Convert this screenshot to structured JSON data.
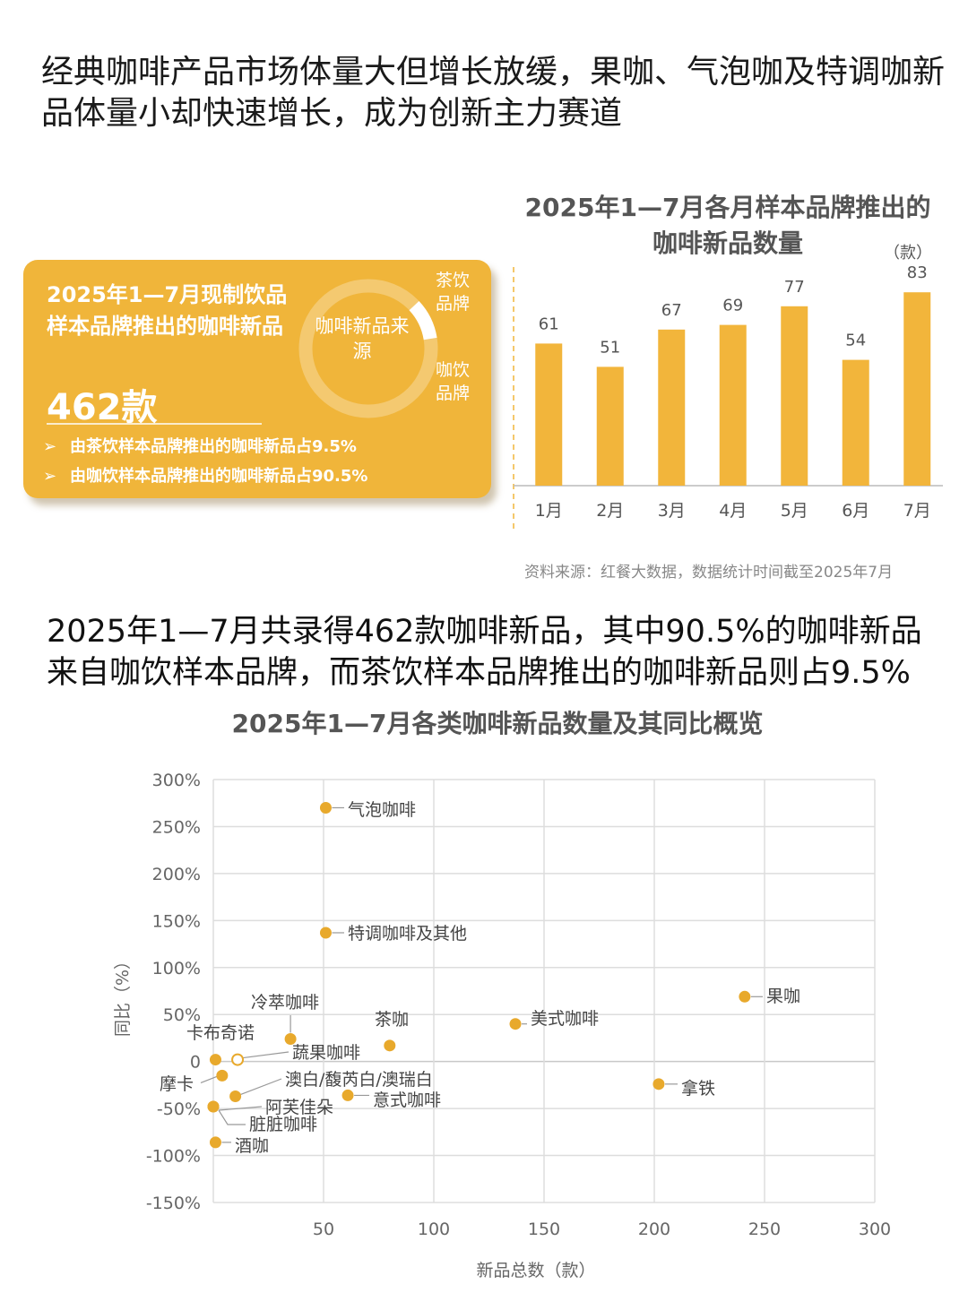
{
  "headline": "经典咖啡产品市场体量大但增长放缓，果咖、气泡咖及特调咖新品体量小却快速增长，成为创新主力赛道",
  "summary_card": {
    "title": "2025年1—7月现制饮品样本品牌推出的咖啡新品",
    "total": "462款",
    "donut_center": "咖啡新品来源",
    "tea_label": "茶饮品牌",
    "coffee_label": "咖饮品牌",
    "bullet_1": "由茶饮样本品牌推出的咖啡新品占9.5%",
    "bullet_2": "由咖饮样本品牌推出的咖啡新品占90.5%",
    "arrow": "➢",
    "share_tea_pct": 9.5,
    "share_coffee_pct": 90.5
  },
  "bar_chart_header": {
    "title": "2025年1—7月各月样本品牌推出的咖啡新品数量",
    "unit": "（款）"
  },
  "source": "资料来源：红餐大数据，数据统计时间截至2025年7月",
  "paragraph": "2025年1—7月共录得462款咖啡新品，其中90.5%的咖啡新品来自咖饮样本品牌，而茶饮样本品牌推出的咖啡新品则占9.5%",
  "scatter_header": {
    "title": "2025年1—7月各类咖啡新品数量及其同比概览"
  },
  "colors": {
    "accent": "#f0b53a",
    "bar": "#f2b53b",
    "point": "#e8a92c",
    "grid": "#dddddd",
    "axis_text": "#666666"
  },
  "chart_data": [
    {
      "type": "bar",
      "title": "2025年1—7月各月样本品牌推出的咖啡新品数量",
      "unit": "（款）",
      "categories": [
        "1月",
        "2月",
        "3月",
        "4月",
        "5月",
        "6月",
        "7月"
      ],
      "values": [
        61,
        51,
        67,
        69,
        77,
        54,
        83
      ],
      "grid": false
    },
    {
      "type": "scatter",
      "title": "2025年1—7月各类咖啡新品数量及其同比概览",
      "xlabel": "新品总数（款）",
      "ylabel": "同比（%）",
      "xlim": [
        0,
        300
      ],
      "ylim": [
        -150,
        300
      ],
      "xticks": [
        "50",
        "100",
        "150",
        "200",
        "250",
        "300"
      ],
      "yticks": [
        "300%",
        "250%",
        "200%",
        "150%",
        "100%",
        "50%",
        "0",
        "-50%",
        "-100%",
        "-150%"
      ],
      "grid": true,
      "points": [
        {
          "name": "气泡咖啡",
          "x": 51,
          "y": 270
        },
        {
          "name": "特调咖啡及其他",
          "x": 51,
          "y": 137
        },
        {
          "name": "果咖",
          "x": 241,
          "y": 69
        },
        {
          "name": "美式咖啡",
          "x": 137,
          "y": 40
        },
        {
          "name": "茶咖",
          "x": 80,
          "y": 17
        },
        {
          "name": "冷萃咖啡",
          "x": 35,
          "y": 24
        },
        {
          "name": "卡布奇诺",
          "x": 1,
          "y": 2
        },
        {
          "name": "蔬果咖啡",
          "x": 11,
          "y": 2,
          "hollow": true
        },
        {
          "name": "摩卡",
          "x": 4,
          "y": -15
        },
        {
          "name": "澳白/馥芮白/澳瑞白",
          "x": 10,
          "y": -37
        },
        {
          "name": "意式咖啡",
          "x": 61,
          "y": -36
        },
        {
          "name": "拿铁",
          "x": 202,
          "y": -24
        },
        {
          "name": "阿芙佳朵",
          "x": 0,
          "y": -48
        },
        {
          "name": "脏脏咖啡",
          "x": 0,
          "y": -48
        },
        {
          "name": "酒咖",
          "x": 1,
          "y": -86
        }
      ]
    }
  ]
}
